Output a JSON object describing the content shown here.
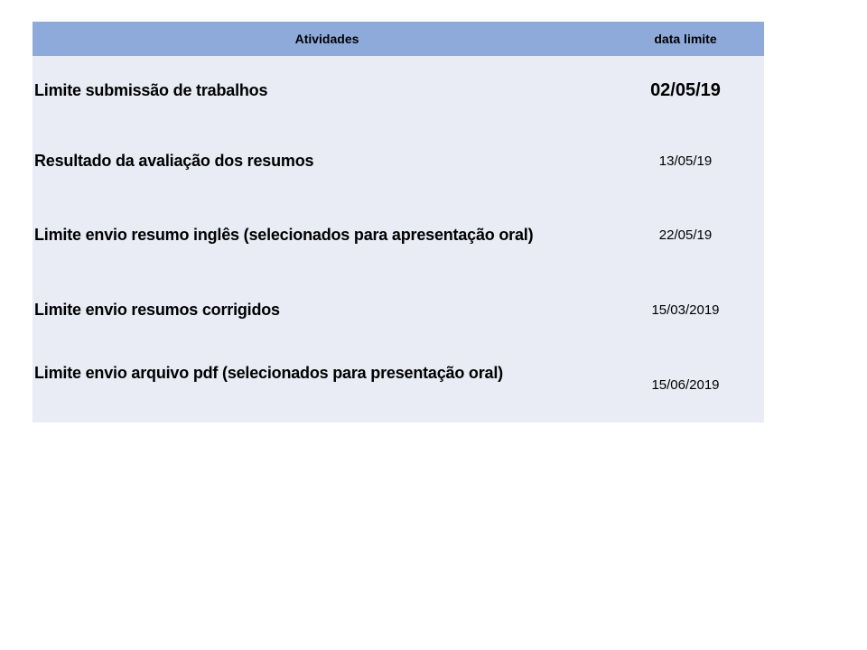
{
  "table": {
    "header": {
      "activities": "Atividades",
      "deadline": "data limite"
    },
    "header_color": "#8EAADB",
    "body_color": "#E9EBF5",
    "rows": [
      {
        "activity": "Limite submissão de trabalhos",
        "date": "02/05/19"
      },
      {
        "activity": "Resultado da avaliação dos resumos",
        "date": "13/05/19"
      },
      {
        "activity": "Limite envio resumo inglês (selecionados para apresentação oral)",
        "date": "22/05/19"
      },
      {
        "activity": "Limite envio resumos corrigidos",
        "date": "15/03/2019"
      },
      {
        "activity": "Limite envio arquivo pdf (selecionados para presentação oral)",
        "date": "15/06/2019"
      }
    ]
  }
}
